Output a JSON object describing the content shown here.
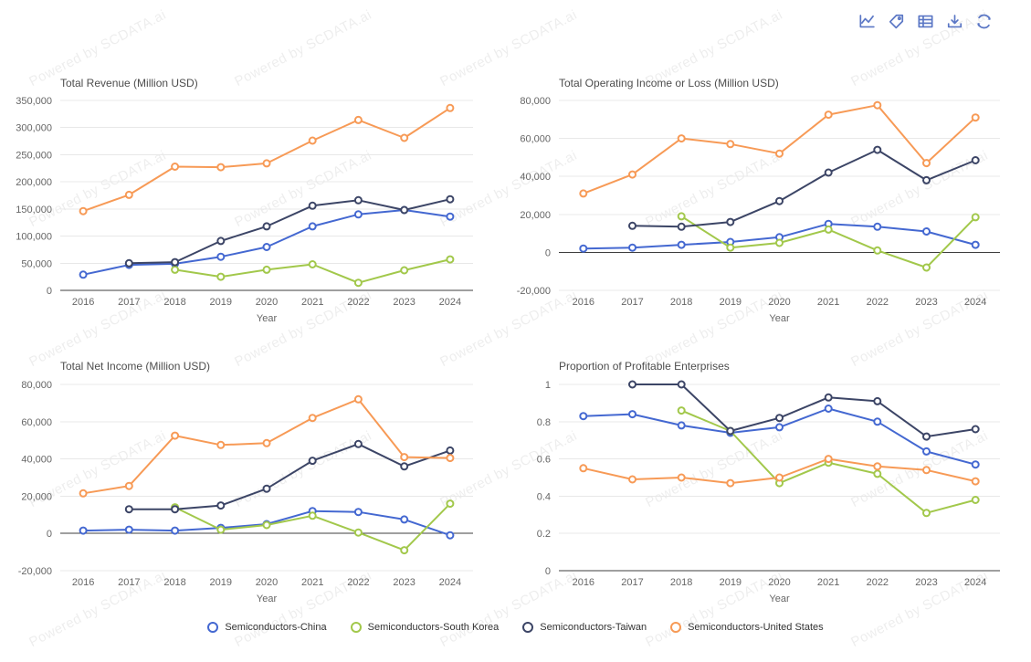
{
  "watermark": {
    "text": "Powered by SCDATA.ai"
  },
  "toolbar": {
    "icons": [
      {
        "name": "line-chart"
      },
      {
        "name": "tag"
      },
      {
        "name": "data-table"
      },
      {
        "name": "download"
      },
      {
        "name": "refresh"
      }
    ]
  },
  "colors": {
    "china": "#4468d1",
    "south_korea": "#a2c84b",
    "taiwan": "#3c4566",
    "united_states": "#f79a56",
    "toolbar_icon": "#5b77c5",
    "grid": "#e8e8e8",
    "axis": "#3f3f3f",
    "tick_text": "#666666",
    "title_text": "#4d4d4d",
    "watermark_text": "rgba(0,0,0,0.07)"
  },
  "legend": [
    {
      "label": "Semiconductors-China",
      "color": "china"
    },
    {
      "label": "Semiconductors-South Korea",
      "color": "south_korea"
    },
    {
      "label": "Semiconductors-Taiwan",
      "color": "taiwan"
    },
    {
      "label": "Semiconductors-United States",
      "color": "united_states"
    }
  ],
  "chart_data": [
    {
      "type": "line",
      "title": "Total Revenue (Million USD)",
      "xlabel": "Year",
      "categories": [
        "2016",
        "2017",
        "2018",
        "2019",
        "2020",
        "2021",
        "2022",
        "2023",
        "2024"
      ],
      "ylim": [
        0,
        350000
      ],
      "yticks": [
        350000,
        300000,
        250000,
        200000,
        150000,
        100000,
        50000,
        0
      ],
      "tick_format": "thousands",
      "axis_value": 0,
      "grid": true,
      "legend_position": "bottom-shared",
      "series": [
        {
          "name": "Semiconductors-China",
          "color": "china",
          "values": [
            29000,
            47000,
            49000,
            62000,
            80000,
            118000,
            140000,
            148000,
            136000
          ]
        },
        {
          "name": "Semiconductors-South Korea",
          "color": "south_korea",
          "values": [
            null,
            null,
            38000,
            25000,
            38000,
            48000,
            14000,
            37000,
            57000
          ]
        },
        {
          "name": "Semiconductors-Taiwan",
          "color": "taiwan",
          "values": [
            null,
            50000,
            52000,
            91000,
            118000,
            156000,
            166000,
            148000,
            168000
          ]
        },
        {
          "name": "Semiconductors-United States",
          "color": "united_states",
          "values": [
            146000,
            176000,
            228000,
            227000,
            234000,
            276000,
            314000,
            281000,
            336000
          ]
        }
      ]
    },
    {
      "type": "line",
      "title": "Total Operating Income or Loss (Million USD)",
      "xlabel": "Year",
      "categories": [
        "2016",
        "2017",
        "2018",
        "2019",
        "2020",
        "2021",
        "2022",
        "2023",
        "2024"
      ],
      "ylim": [
        -20000,
        80000
      ],
      "yticks": [
        80000,
        60000,
        40000,
        20000,
        0,
        -20000
      ],
      "tick_format": "thousands",
      "axis_value": 0,
      "grid": true,
      "legend_position": "bottom-shared",
      "series": [
        {
          "name": "Semiconductors-China",
          "color": "china",
          "values": [
            2000,
            2500,
            4000,
            5500,
            8000,
            15000,
            13500,
            11000,
            4000
          ]
        },
        {
          "name": "Semiconductors-South Korea",
          "color": "south_korea",
          "values": [
            null,
            null,
            19000,
            2500,
            5000,
            12000,
            1000,
            -8000,
            18500
          ]
        },
        {
          "name": "Semiconductors-Taiwan",
          "color": "taiwan",
          "values": [
            null,
            14000,
            13500,
            16000,
            27000,
            42000,
            54000,
            38000,
            48500
          ]
        },
        {
          "name": "Semiconductors-United States",
          "color": "united_states",
          "values": [
            31000,
            41000,
            60000,
            57000,
            52000,
            72500,
            77500,
            47000,
            71000
          ]
        }
      ]
    },
    {
      "type": "line",
      "title": "Total Net Income (Million USD)",
      "xlabel": "Year",
      "categories": [
        "2016",
        "2017",
        "2018",
        "2019",
        "2020",
        "2021",
        "2022",
        "2023",
        "2024"
      ],
      "ylim": [
        -20000,
        80000
      ],
      "yticks": [
        80000,
        60000,
        40000,
        20000,
        0,
        -20000
      ],
      "tick_format": "thousands",
      "axis_value": 0,
      "grid": true,
      "legend_position": "bottom-shared",
      "series": [
        {
          "name": "Semiconductors-China",
          "color": "china",
          "values": [
            1500,
            2000,
            1500,
            3000,
            5000,
            12000,
            11500,
            7500,
            -1000
          ]
        },
        {
          "name": "Semiconductors-South Korea",
          "color": "south_korea",
          "values": [
            null,
            null,
            14000,
            2000,
            4500,
            9500,
            500,
            -9000,
            16000
          ]
        },
        {
          "name": "Semiconductors-Taiwan",
          "color": "taiwan",
          "values": [
            null,
            13000,
            13000,
            15000,
            24000,
            39000,
            48000,
            36000,
            44500
          ]
        },
        {
          "name": "Semiconductors-United States",
          "color": "united_states",
          "values": [
            21500,
            25500,
            52500,
            47500,
            48500,
            62000,
            72000,
            41000,
            40500
          ]
        }
      ]
    },
    {
      "type": "line",
      "title": "Proportion of Profitable Enterprises",
      "xlabel": "Year",
      "categories": [
        "2016",
        "2017",
        "2018",
        "2019",
        "2020",
        "2021",
        "2022",
        "2023",
        "2024"
      ],
      "ylim": [
        0,
        1
      ],
      "yticks": [
        1,
        0.8,
        0.6,
        0.4,
        0.2,
        0
      ],
      "tick_format": "plain",
      "axis_value": 0,
      "grid": true,
      "legend_position": "bottom-shared",
      "series": [
        {
          "name": "Semiconductors-China",
          "color": "china",
          "values": [
            0.83,
            0.84,
            0.78,
            0.74,
            0.77,
            0.87,
            0.8,
            0.64,
            0.57
          ]
        },
        {
          "name": "Semiconductors-South Korea",
          "color": "south_korea",
          "values": [
            null,
            null,
            0.86,
            0.75,
            0.47,
            0.58,
            0.52,
            0.31,
            0.38
          ]
        },
        {
          "name": "Semiconductors-Taiwan",
          "color": "taiwan",
          "values": [
            null,
            1.0,
            1.0,
            0.75,
            0.82,
            0.93,
            0.91,
            0.72,
            0.76
          ]
        },
        {
          "name": "Semiconductors-United States",
          "color": "united_states",
          "values": [
            0.55,
            0.49,
            0.5,
            0.47,
            0.5,
            0.6,
            0.56,
            0.54,
            0.48
          ]
        }
      ]
    }
  ]
}
